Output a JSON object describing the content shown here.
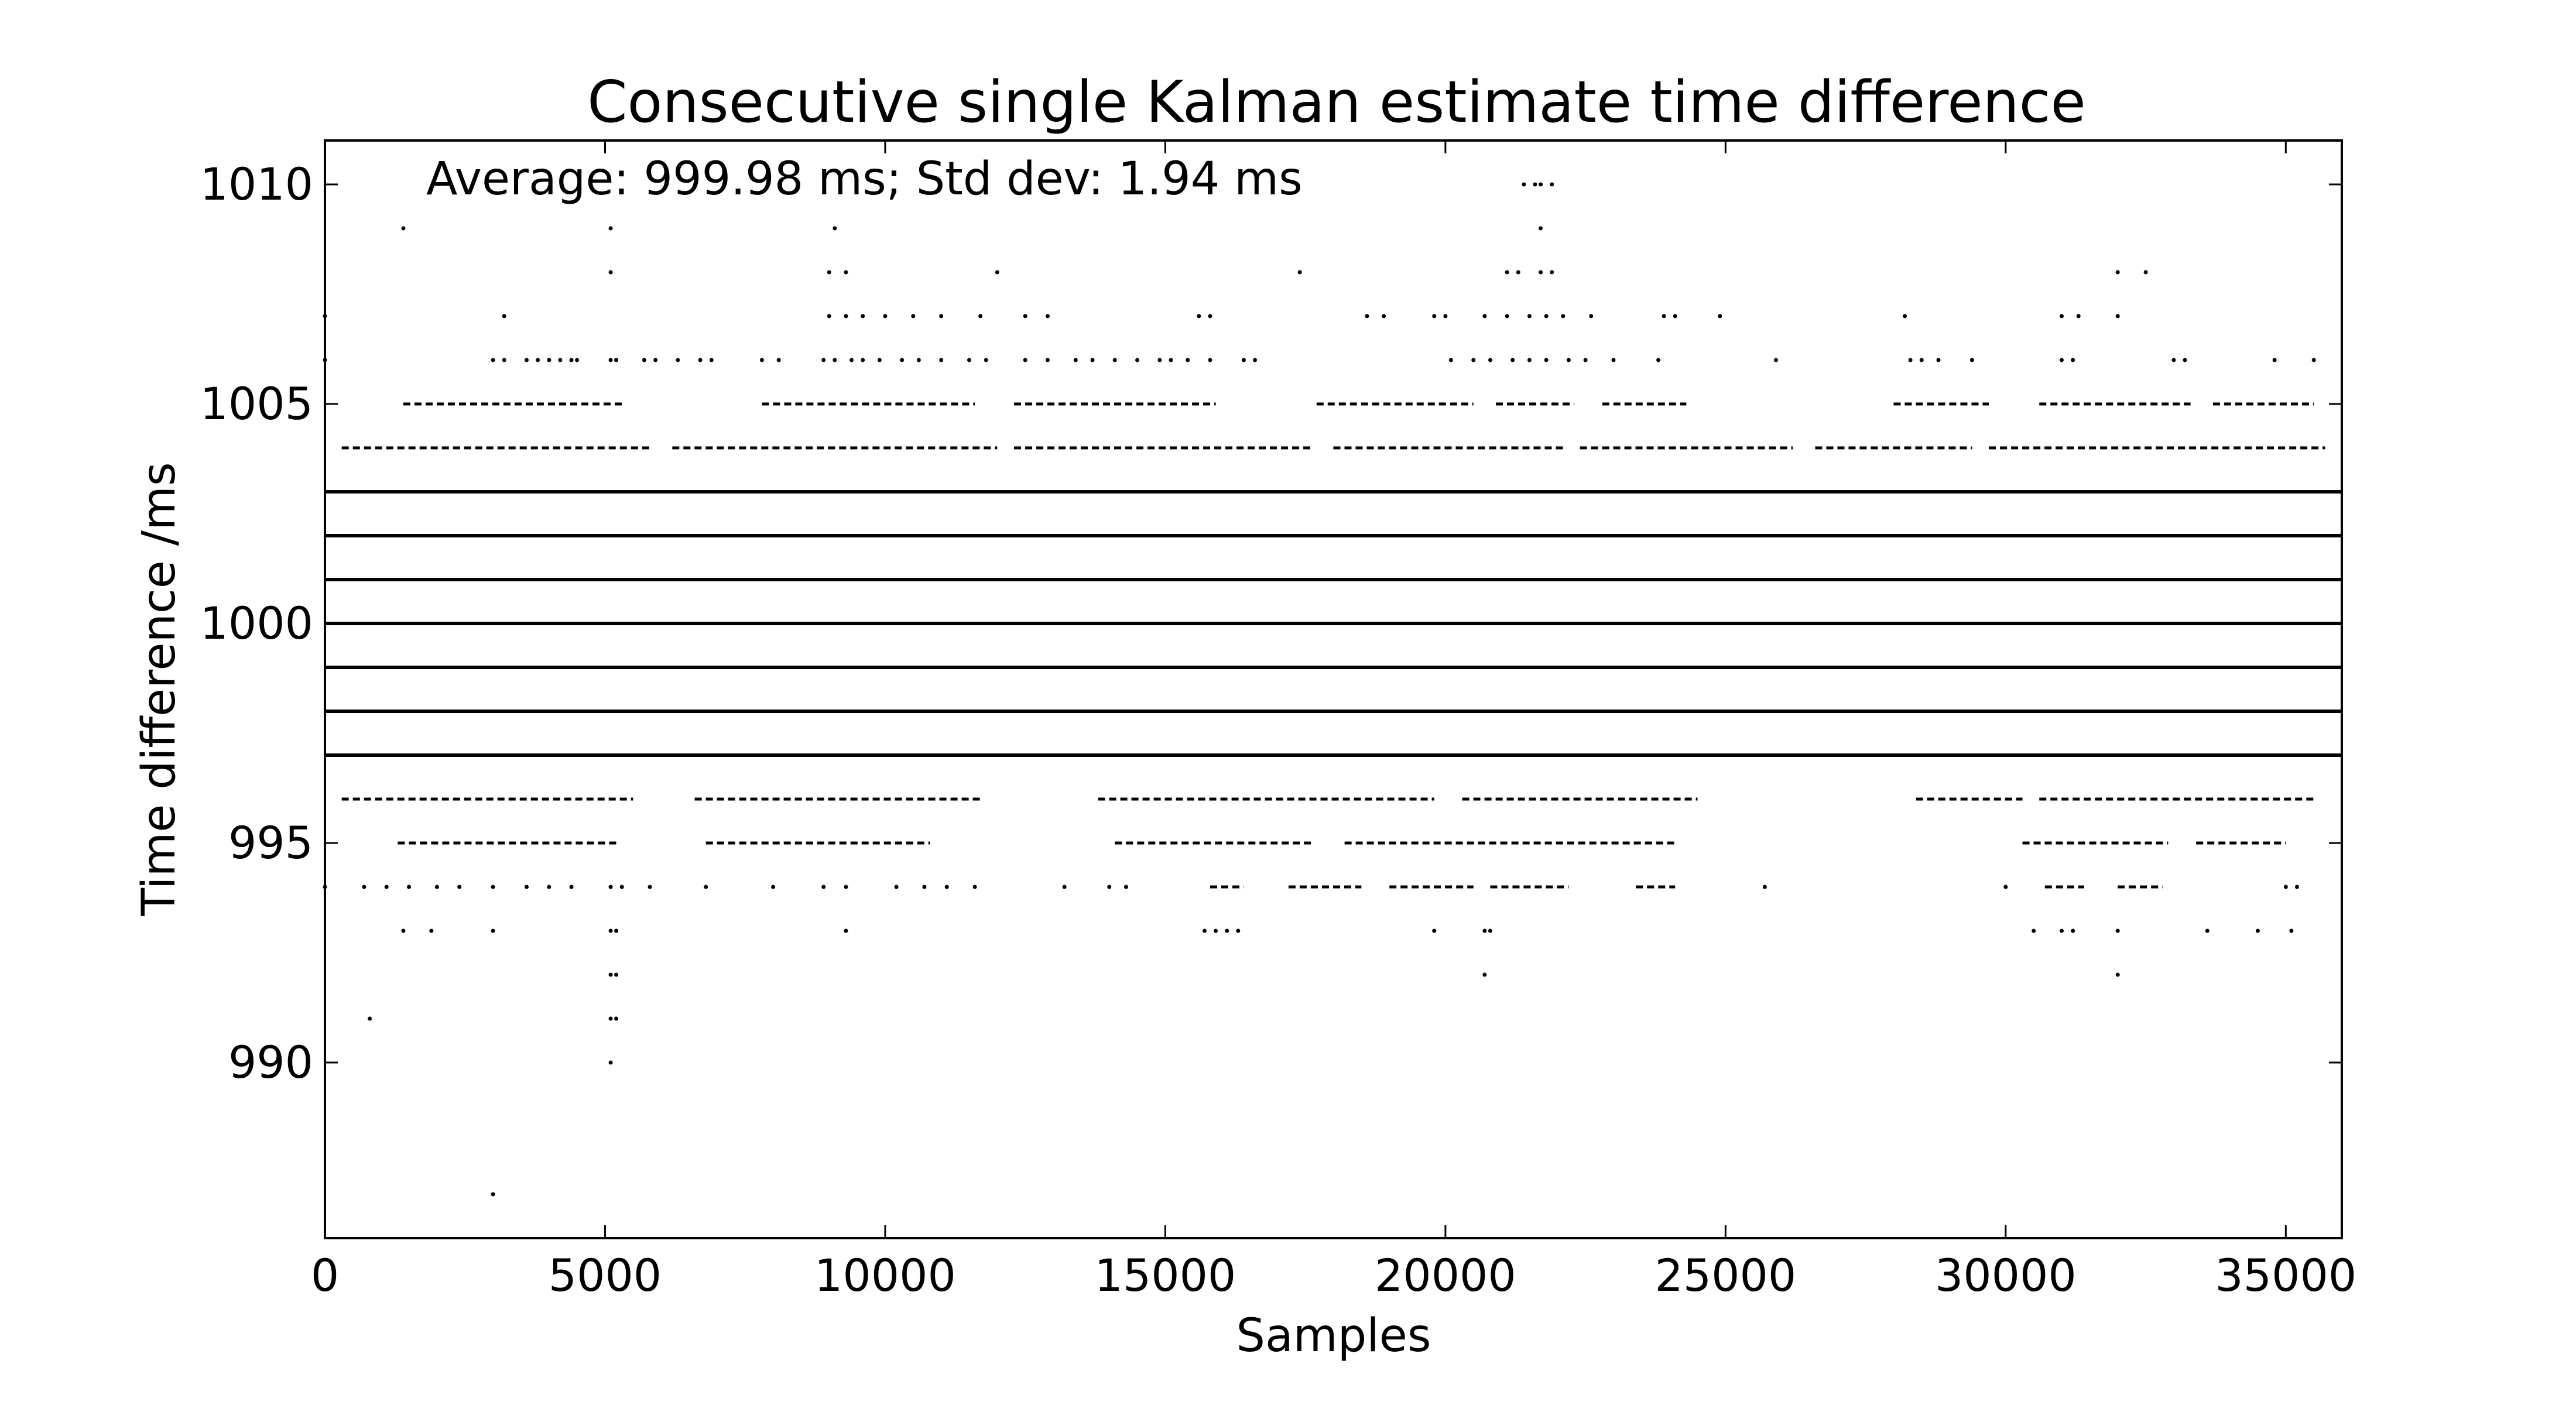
{
  "chart_data": {
    "type": "scatter",
    "title": "Consecutive single Kalman estimate time difference",
    "xlabel": "Samples",
    "ylabel": "Time difference /ms",
    "annotation": "Average: 999.98 ms;  Std dev: 1.94 ms",
    "xlim": [
      0,
      36000
    ],
    "ylim": [
      986,
      1011
    ],
    "xticks": [
      0,
      5000,
      10000,
      15000,
      20000,
      25000,
      30000,
      35000
    ],
    "yticks": [
      990,
      995,
      1000,
      1005,
      1010
    ],
    "grid": false,
    "marker_color": "#000000",
    "dense_levels": [
      {
        "y": 1003,
        "x_range": [
          0,
          36000
        ]
      },
      {
        "y": 1002,
        "x_range": [
          0,
          36000
        ]
      },
      {
        "y": 1001,
        "x_range": [
          0,
          36000
        ]
      },
      {
        "y": 1000,
        "x_range": [
          0,
          36000
        ]
      },
      {
        "y": 999,
        "x_range": [
          0,
          36000
        ]
      },
      {
        "y": 998,
        "x_range": [
          0,
          36000
        ]
      },
      {
        "y": 997,
        "x_range": [
          0,
          36000
        ]
      }
    ],
    "sparse_levels": [
      {
        "y": 1004,
        "x_segments": [
          [
            300,
            5800
          ],
          [
            6200,
            12000
          ],
          [
            12300,
            17600
          ],
          [
            18000,
            22100
          ],
          [
            22400,
            26200
          ],
          [
            26600,
            29400
          ],
          [
            29700,
            35700
          ]
        ]
      },
      {
        "y": 1005,
        "x_segments": [
          [
            1400,
            5300
          ],
          [
            7800,
            11600
          ],
          [
            12300,
            15900
          ],
          [
            17700,
            20500
          ],
          [
            20900,
            22300
          ],
          [
            22800,
            24300
          ],
          [
            28000,
            29700
          ],
          [
            30600,
            33300
          ],
          [
            33700,
            35500
          ]
        ]
      },
      {
        "y": 996,
        "x_segments": [
          [
            300,
            5500
          ],
          [
            6600,
            11700
          ],
          [
            13800,
            19800
          ],
          [
            20300,
            24500
          ],
          [
            28400,
            30300
          ],
          [
            30600,
            35500
          ]
        ]
      },
      {
        "y": 995,
        "x_segments": [
          [
            1300,
            5200
          ],
          [
            6800,
            10800
          ],
          [
            14100,
            17600
          ],
          [
            18200,
            24100
          ],
          [
            30300,
            32900
          ],
          [
            33400,
            35000
          ]
        ]
      },
      {
        "y": 994,
        "x_segments": [
          [
            15800,
            16400
          ],
          [
            17200,
            18500
          ],
          [
            19000,
            20500
          ],
          [
            20800,
            22200
          ],
          [
            23400,
            24100
          ],
          [
            30700,
            31400
          ],
          [
            32000,
            32800
          ]
        ]
      }
    ],
    "points": [
      {
        "x": 1400,
        "y": 1009
      },
      {
        "x": 5100,
        "y": 1009
      },
      {
        "x": 9100,
        "y": 1009
      },
      {
        "x": 21700,
        "y": 1009
      },
      {
        "x": 5100,
        "y": 1008
      },
      {
        "x": 9000,
        "y": 1008
      },
      {
        "x": 9300,
        "y": 1008
      },
      {
        "x": 12000,
        "y": 1008
      },
      {
        "x": 17400,
        "y": 1008
      },
      {
        "x": 21100,
        "y": 1008
      },
      {
        "x": 21300,
        "y": 1008
      },
      {
        "x": 21700,
        "y": 1008
      },
      {
        "x": 21900,
        "y": 1008
      },
      {
        "x": 32000,
        "y": 1008
      },
      {
        "x": 32500,
        "y": 1008
      },
      {
        "x": 21400,
        "y": 1010
      },
      {
        "x": 21600,
        "y": 1010
      },
      {
        "x": 21700,
        "y": 1010
      },
      {
        "x": 21900,
        "y": 1010
      },
      {
        "x": 0,
        "y": 1007
      },
      {
        "x": 3200,
        "y": 1007
      },
      {
        "x": 9000,
        "y": 1007
      },
      {
        "x": 9300,
        "y": 1007
      },
      {
        "x": 9600,
        "y": 1007
      },
      {
        "x": 10000,
        "y": 1007
      },
      {
        "x": 10500,
        "y": 1007
      },
      {
        "x": 11000,
        "y": 1007
      },
      {
        "x": 11700,
        "y": 1007
      },
      {
        "x": 12500,
        "y": 1007
      },
      {
        "x": 12900,
        "y": 1007
      },
      {
        "x": 15600,
        "y": 1007
      },
      {
        "x": 15800,
        "y": 1007
      },
      {
        "x": 18600,
        "y": 1007
      },
      {
        "x": 18900,
        "y": 1007
      },
      {
        "x": 19800,
        "y": 1007
      },
      {
        "x": 20000,
        "y": 1007
      },
      {
        "x": 20700,
        "y": 1007
      },
      {
        "x": 21100,
        "y": 1007
      },
      {
        "x": 21500,
        "y": 1007
      },
      {
        "x": 21800,
        "y": 1007
      },
      {
        "x": 22100,
        "y": 1007
      },
      {
        "x": 22600,
        "y": 1007
      },
      {
        "x": 23900,
        "y": 1007
      },
      {
        "x": 24100,
        "y": 1007
      },
      {
        "x": 24900,
        "y": 1007
      },
      {
        "x": 28200,
        "y": 1007
      },
      {
        "x": 31000,
        "y": 1007
      },
      {
        "x": 31300,
        "y": 1007
      },
      {
        "x": 32000,
        "y": 1007
      },
      {
        "x": 0,
        "y": 1006
      },
      {
        "x": 3000,
        "y": 1006
      },
      {
        "x": 3200,
        "y": 1006
      },
      {
        "x": 3600,
        "y": 1006
      },
      {
        "x": 3800,
        "y": 1006
      },
      {
        "x": 4000,
        "y": 1006
      },
      {
        "x": 4200,
        "y": 1006
      },
      {
        "x": 4400,
        "y": 1006
      },
      {
        "x": 4500,
        "y": 1006
      },
      {
        "x": 5100,
        "y": 1006
      },
      {
        "x": 5200,
        "y": 1006
      },
      {
        "x": 5700,
        "y": 1006
      },
      {
        "x": 5900,
        "y": 1006
      },
      {
        "x": 6300,
        "y": 1006
      },
      {
        "x": 6700,
        "y": 1006
      },
      {
        "x": 6900,
        "y": 1006
      },
      {
        "x": 7800,
        "y": 1006
      },
      {
        "x": 8100,
        "y": 1006
      },
      {
        "x": 8900,
        "y": 1006
      },
      {
        "x": 9100,
        "y": 1006
      },
      {
        "x": 9400,
        "y": 1006
      },
      {
        "x": 9600,
        "y": 1006
      },
      {
        "x": 9900,
        "y": 1006
      },
      {
        "x": 10300,
        "y": 1006
      },
      {
        "x": 10600,
        "y": 1006
      },
      {
        "x": 11000,
        "y": 1006
      },
      {
        "x": 11500,
        "y": 1006
      },
      {
        "x": 11800,
        "y": 1006
      },
      {
        "x": 12500,
        "y": 1006
      },
      {
        "x": 12900,
        "y": 1006
      },
      {
        "x": 13400,
        "y": 1006
      },
      {
        "x": 13700,
        "y": 1006
      },
      {
        "x": 14100,
        "y": 1006
      },
      {
        "x": 14500,
        "y": 1006
      },
      {
        "x": 14900,
        "y": 1006
      },
      {
        "x": 15100,
        "y": 1006
      },
      {
        "x": 15400,
        "y": 1006
      },
      {
        "x": 15800,
        "y": 1006
      },
      {
        "x": 16400,
        "y": 1006
      },
      {
        "x": 16600,
        "y": 1006
      },
      {
        "x": 20100,
        "y": 1006
      },
      {
        "x": 20500,
        "y": 1006
      },
      {
        "x": 20800,
        "y": 1006
      },
      {
        "x": 21200,
        "y": 1006
      },
      {
        "x": 21500,
        "y": 1006
      },
      {
        "x": 21800,
        "y": 1006
      },
      {
        "x": 22200,
        "y": 1006
      },
      {
        "x": 22500,
        "y": 1006
      },
      {
        "x": 23000,
        "y": 1006
      },
      {
        "x": 23800,
        "y": 1006
      },
      {
        "x": 25900,
        "y": 1006
      },
      {
        "x": 28300,
        "y": 1006
      },
      {
        "x": 28500,
        "y": 1006
      },
      {
        "x": 28800,
        "y": 1006
      },
      {
        "x": 29400,
        "y": 1006
      },
      {
        "x": 31000,
        "y": 1006
      },
      {
        "x": 31200,
        "y": 1006
      },
      {
        "x": 33000,
        "y": 1006
      },
      {
        "x": 33200,
        "y": 1006
      },
      {
        "x": 34800,
        "y": 1006
      },
      {
        "x": 35500,
        "y": 1006
      },
      {
        "x": 0,
        "y": 994
      },
      {
        "x": 700,
        "y": 994
      },
      {
        "x": 1100,
        "y": 994
      },
      {
        "x": 1500,
        "y": 994
      },
      {
        "x": 2000,
        "y": 994
      },
      {
        "x": 2400,
        "y": 994
      },
      {
        "x": 3000,
        "y": 994
      },
      {
        "x": 3600,
        "y": 994
      },
      {
        "x": 4000,
        "y": 994
      },
      {
        "x": 4400,
        "y": 994
      },
      {
        "x": 5100,
        "y": 994
      },
      {
        "x": 5300,
        "y": 994
      },
      {
        "x": 5800,
        "y": 994
      },
      {
        "x": 6800,
        "y": 994
      },
      {
        "x": 8000,
        "y": 994
      },
      {
        "x": 8900,
        "y": 994
      },
      {
        "x": 9300,
        "y": 994
      },
      {
        "x": 10200,
        "y": 994
      },
      {
        "x": 10700,
        "y": 994
      },
      {
        "x": 11100,
        "y": 994
      },
      {
        "x": 11600,
        "y": 994
      },
      {
        "x": 13200,
        "y": 994
      },
      {
        "x": 14000,
        "y": 994
      },
      {
        "x": 14300,
        "y": 994
      },
      {
        "x": 25700,
        "y": 994
      },
      {
        "x": 30000,
        "y": 994
      },
      {
        "x": 35000,
        "y": 994
      },
      {
        "x": 35200,
        "y": 994
      },
      {
        "x": 1400,
        "y": 993
      },
      {
        "x": 1900,
        "y": 993
      },
      {
        "x": 3000,
        "y": 993
      },
      {
        "x": 5100,
        "y": 993
      },
      {
        "x": 5200,
        "y": 993
      },
      {
        "x": 9300,
        "y": 993
      },
      {
        "x": 15700,
        "y": 993
      },
      {
        "x": 15900,
        "y": 993
      },
      {
        "x": 16100,
        "y": 993
      },
      {
        "x": 16300,
        "y": 993
      },
      {
        "x": 19800,
        "y": 993
      },
      {
        "x": 20700,
        "y": 993
      },
      {
        "x": 20800,
        "y": 993
      },
      {
        "x": 30500,
        "y": 993
      },
      {
        "x": 31000,
        "y": 993
      },
      {
        "x": 31200,
        "y": 993
      },
      {
        "x": 32000,
        "y": 993
      },
      {
        "x": 33600,
        "y": 993
      },
      {
        "x": 34500,
        "y": 993
      },
      {
        "x": 35100,
        "y": 993
      },
      {
        "x": 5100,
        "y": 992
      },
      {
        "x": 5200,
        "y": 992
      },
      {
        "x": 20700,
        "y": 992
      },
      {
        "x": 32000,
        "y": 992
      },
      {
        "x": 800,
        "y": 991
      },
      {
        "x": 5100,
        "y": 991
      },
      {
        "x": 5200,
        "y": 991
      },
      {
        "x": 5100,
        "y": 990
      },
      {
        "x": 3000,
        "y": 987
      }
    ]
  }
}
